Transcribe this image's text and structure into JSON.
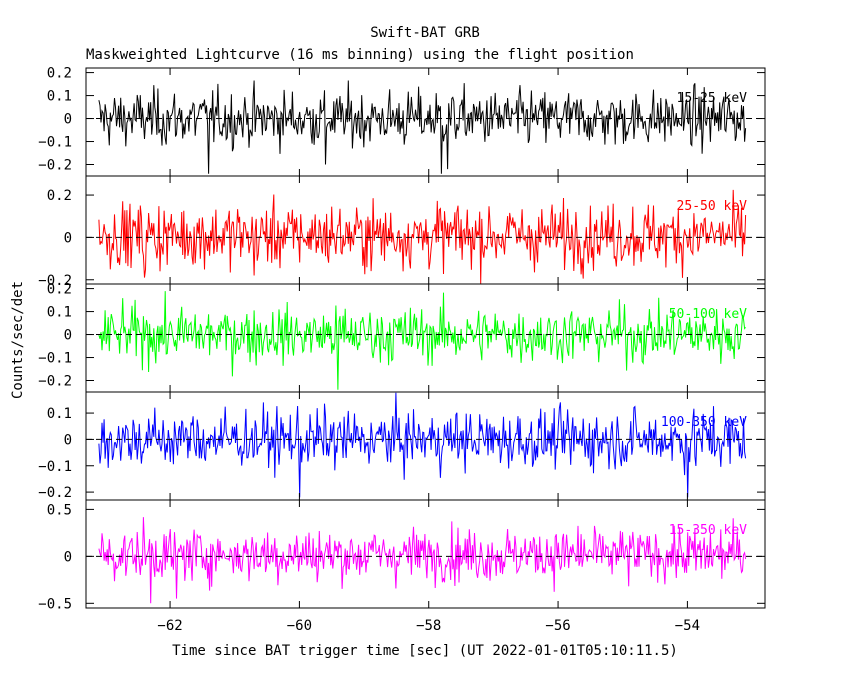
{
  "title": "Swift-BAT GRB",
  "subtitle": "Maskweighted Lightcurve (16 ms binning) using the flight position",
  "chart_data": {
    "type": "line",
    "xlabel": "Time since BAT trigger time [sec] (UT 2022-01-01T05:10:11.5)",
    "ylabel": "Counts/sec/det",
    "xlim": [
      -63.3,
      -52.8
    ],
    "data_xrange": [
      -63.1,
      -53.1
    ],
    "bin_seconds": 0.016,
    "x_ticks": [
      -62,
      -60,
      -58,
      -56,
      -54
    ],
    "x_tick_labels": [
      "−62",
      "−60",
      "−58",
      "−56",
      "−54"
    ],
    "grid": false,
    "legend": "none; band label at top-right of each panel",
    "panels": [
      {
        "band": "15-25 keV",
        "color": "#000000",
        "ylim": [
          -0.25,
          0.22
        ],
        "y_ticks": [
          -0.2,
          -0.1,
          0,
          0.1,
          0.2
        ],
        "y_tick_labels": [
          "−0.2",
          "−0.1",
          "0",
          "0.1",
          "0.2"
        ],
        "mean": 0.0,
        "sigma": 0.06,
        "dips": [
          {
            "x": -61.4,
            "y": -0.24
          },
          {
            "x": -57.8,
            "y": -0.24
          },
          {
            "x": -57.7,
            "y": -0.22
          },
          {
            "x": -59.6,
            "y": -0.2
          }
        ]
      },
      {
        "band": "25-50 keV",
        "color": "#ff0000",
        "ylim": [
          -0.22,
          0.29
        ],
        "y_ticks": [
          -0.2,
          0,
          0.2
        ],
        "y_tick_labels": [
          "−0.2",
          "0",
          "0.2"
        ],
        "mean": 0.01,
        "sigma": 0.075,
        "dips": [
          {
            "x": -62.4,
            "y": -0.19
          },
          {
            "x": -60.7,
            "y": -0.18
          }
        ]
      },
      {
        "band": "50-100 keV",
        "color": "#00ff00",
        "ylim": [
          -0.25,
          0.22
        ],
        "y_ticks": [
          -0.2,
          -0.1,
          0,
          0.1,
          0.2
        ],
        "y_tick_labels": [
          "−0.2",
          "−0.1",
          "0",
          "0.1",
          "0.2"
        ],
        "mean": 0.0,
        "sigma": 0.06,
        "dips": [
          {
            "x": -59.4,
            "y": -0.24
          }
        ]
      },
      {
        "band": "100-350 keV",
        "color": "#0000ff",
        "ylim": [
          -0.23,
          0.18
        ],
        "y_ticks": [
          -0.2,
          -0.1,
          0,
          0.1
        ],
        "y_tick_labels": [
          "−0.2",
          "−0.1",
          "0",
          "0.1"
        ],
        "mean": 0.0,
        "sigma": 0.055,
        "dips": [
          {
            "x": -54.0,
            "y": -0.22
          },
          {
            "x": -60.0,
            "y": -0.22
          }
        ]
      },
      {
        "band": "15-350 keV",
        "color": "#ff00ff",
        "ylim": [
          -0.55,
          0.6
        ],
        "y_ticks": [
          -0.5,
          0,
          0.5
        ],
        "y_tick_labels": [
          "−0.5",
          "0",
          "0.5"
        ],
        "mean": 0.02,
        "sigma": 0.14,
        "dips": [
          {
            "x": -62.3,
            "y": -0.5
          },
          {
            "x": -61.9,
            "y": -0.45
          }
        ]
      }
    ]
  }
}
